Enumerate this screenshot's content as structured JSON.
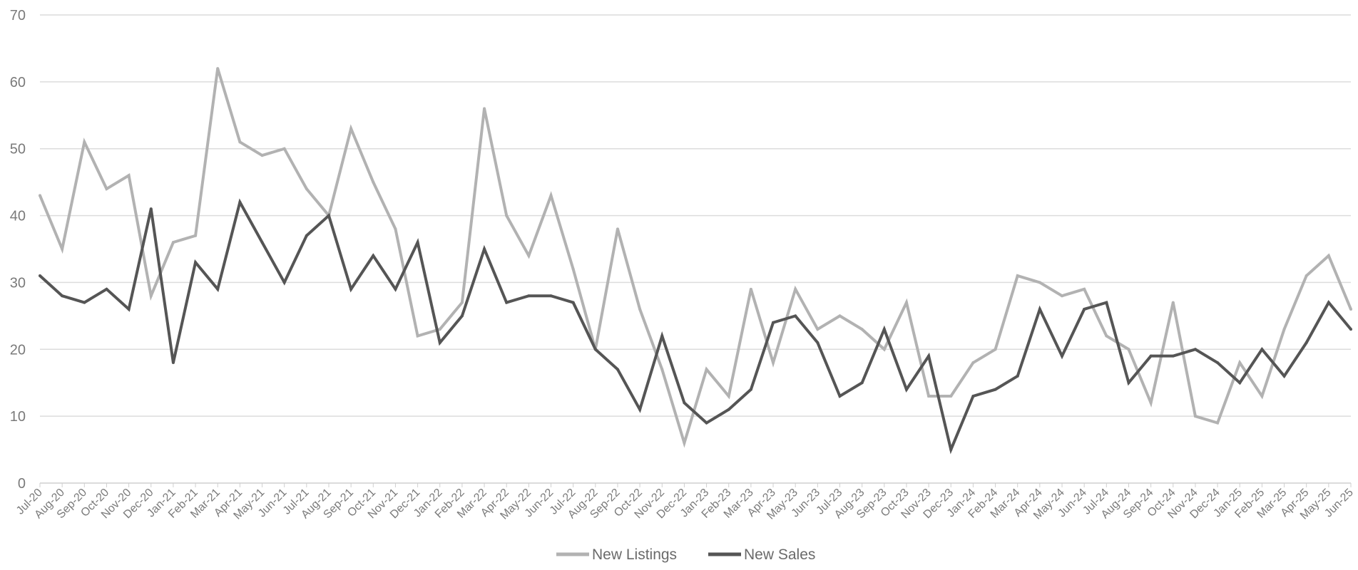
{
  "chart_data": {
    "type": "line",
    "title": "",
    "xlabel": "",
    "ylabel": "",
    "ylim": [
      0,
      70
    ],
    "y_ticks": [
      0,
      10,
      20,
      30,
      40,
      50,
      60,
      70
    ],
    "grid": true,
    "legend_position": "bottom",
    "categories": [
      "Jul-20",
      "Aug-20",
      "Sep-20",
      "Oct-20",
      "Nov-20",
      "Dec-20",
      "Jan-21",
      "Feb-21",
      "Mar-21",
      "Apr-21",
      "May-21",
      "Jun-21",
      "Jul-21",
      "Aug-21",
      "Sep-21",
      "Oct-21",
      "Nov-21",
      "Dec-21",
      "Jan-22",
      "Feb-22",
      "Mar-22",
      "Apr-22",
      "May-22",
      "Jun-22",
      "Jul-22",
      "Aug-22",
      "Sep-22",
      "Oct-22",
      "Nov-22",
      "Dec-22",
      "Jan-23",
      "Feb-23",
      "Mar-23",
      "Apr-23",
      "May-23",
      "Jun-23",
      "Jul-23",
      "Aug-23",
      "Sep-23",
      "Oct-23",
      "Nov-23",
      "Dec-23",
      "Jan-24",
      "Feb-24",
      "Mar-24",
      "Apr-24",
      "May-24",
      "Jun-24",
      "Jul-24",
      "Aug-24",
      "Sep-24",
      "Oct-24",
      "Nov-24",
      "Dec-24",
      "Jan-25",
      "Feb-25",
      "Mar-25",
      "Apr-25",
      "May-25",
      "Jun-25"
    ],
    "series": [
      {
        "name": "New Listings",
        "color": "#b2b2b2",
        "values": [
          43,
          35,
          51,
          44,
          46,
          28,
          36,
          37,
          62,
          51,
          49,
          50,
          44,
          40,
          53,
          45,
          38,
          22,
          23,
          27,
          56,
          40,
          34,
          43,
          32,
          20,
          38,
          26,
          17,
          6,
          17,
          13,
          29,
          18,
          29,
          23,
          25,
          23,
          20,
          27,
          13,
          13,
          18,
          20,
          31,
          30,
          28,
          29,
          22,
          20,
          12,
          27,
          10,
          9,
          18,
          13,
          23,
          31,
          34,
          26
        ]
      },
      {
        "name": "New Sales",
        "color": "#555555",
        "values": [
          31,
          28,
          27,
          29,
          26,
          41,
          18,
          33,
          29,
          42,
          36,
          30,
          37,
          40,
          29,
          34,
          29,
          36,
          21,
          25,
          35,
          27,
          28,
          28,
          27,
          20,
          17,
          11,
          22,
          12,
          9,
          11,
          14,
          24,
          25,
          21,
          13,
          15,
          23,
          14,
          19,
          5,
          13,
          14,
          16,
          26,
          19,
          26,
          27,
          15,
          19,
          19,
          20,
          18,
          15,
          20,
          16,
          21,
          27,
          23
        ]
      }
    ]
  }
}
